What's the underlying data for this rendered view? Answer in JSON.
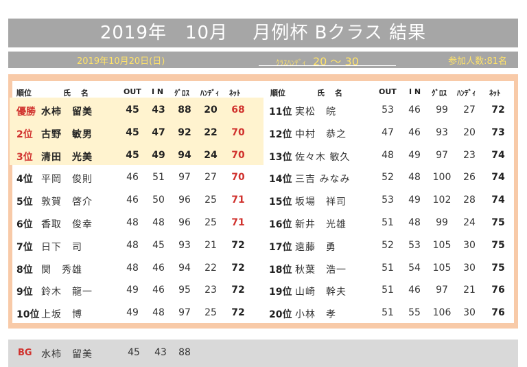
{
  "title": "2019年　10月　 月例杯 Bクラス 結果",
  "subtitle": {
    "date": "2019年10月20日(日)",
    "class_label": "ｸﾗｽﾊﾝﾃﾞｨ",
    "class_range": "20 ～ 30",
    "participants": "参加人数:81名"
  },
  "headers": {
    "rank": "順位",
    "name": "氏　 名",
    "out": "OUT",
    "in": "I N",
    "gross": "ｸﾞﾛｽ",
    "handicap": "ﾊﾝﾃﾞｨ",
    "net": "ﾈｯﾄ"
  },
  "left_rows": [
    {
      "rank": "優勝",
      "name": "水柿　留美",
      "out": "45",
      "in": "43",
      "gross": "88",
      "hdcp": "20",
      "net": "68",
      "top": true,
      "net_red": true
    },
    {
      "rank": "2位",
      "name": "古野　敏男",
      "out": "45",
      "in": "47",
      "gross": "92",
      "hdcp": "22",
      "net": "70",
      "top": true,
      "net_red": true
    },
    {
      "rank": "3位",
      "name": "清田　光美",
      "out": "45",
      "in": "49",
      "gross": "94",
      "hdcp": "24",
      "net": "70",
      "top": true,
      "net_red": true
    },
    {
      "rank": "4位",
      "name": "平岡　俊則",
      "out": "46",
      "in": "51",
      "gross": "97",
      "hdcp": "27",
      "net": "70",
      "top": false,
      "net_red": true
    },
    {
      "rank": "5位",
      "name": "敦賀　啓介",
      "out": "46",
      "in": "50",
      "gross": "96",
      "hdcp": "25",
      "net": "71",
      "top": false,
      "net_red": true
    },
    {
      "rank": "6位",
      "name": "香取　俊幸",
      "out": "48",
      "in": "48",
      "gross": "96",
      "hdcp": "25",
      "net": "71",
      "top": false,
      "net_red": true
    },
    {
      "rank": "7位",
      "name": "日下　司",
      "out": "48",
      "in": "45",
      "gross": "93",
      "hdcp": "21",
      "net": "72",
      "top": false,
      "net_red": false
    },
    {
      "rank": "8位",
      "name": "関　秀雄",
      "out": "48",
      "in": "46",
      "gross": "94",
      "hdcp": "22",
      "net": "72",
      "top": false,
      "net_red": false
    },
    {
      "rank": "9位",
      "name": "鈴木　龍一",
      "out": "49",
      "in": "46",
      "gross": "95",
      "hdcp": "23",
      "net": "72",
      "top": false,
      "net_red": false
    },
    {
      "rank": "10位",
      "name": "上坂　博",
      "out": "49",
      "in": "48",
      "gross": "97",
      "hdcp": "25",
      "net": "72",
      "top": false,
      "net_red": false
    }
  ],
  "right_rows": [
    {
      "rank": "11位",
      "name": "実松　皖",
      "out": "53",
      "in": "46",
      "gross": "99",
      "hdcp": "27",
      "net": "72"
    },
    {
      "rank": "12位",
      "name": "中村　恭之",
      "out": "47",
      "in": "46",
      "gross": "93",
      "hdcp": "20",
      "net": "73"
    },
    {
      "rank": "13位",
      "name": "佐々木 敏久",
      "out": "48",
      "in": "49",
      "gross": "97",
      "hdcp": "23",
      "net": "74"
    },
    {
      "rank": "14位",
      "name": "三吉 みなみ",
      "out": "52",
      "in": "48",
      "gross": "100",
      "hdcp": "26",
      "net": "74"
    },
    {
      "rank": "15位",
      "name": "坂場　祥司",
      "out": "53",
      "in": "49",
      "gross": "102",
      "hdcp": "28",
      "net": "74"
    },
    {
      "rank": "16位",
      "name": "新井　光雄",
      "out": "51",
      "in": "48",
      "gross": "99",
      "hdcp": "24",
      "net": "75"
    },
    {
      "rank": "17位",
      "name": "遠藤　勇",
      "out": "52",
      "in": "53",
      "gross": "105",
      "hdcp": "30",
      "net": "75"
    },
    {
      "rank": "18位",
      "name": "秋葉　浩一",
      "out": "51",
      "in": "54",
      "gross": "105",
      "hdcp": "30",
      "net": "75"
    },
    {
      "rank": "19位",
      "name": "山崎　幹夫",
      "out": "51",
      "in": "46",
      "gross": "97",
      "hdcp": "21",
      "net": "76"
    },
    {
      "rank": "20位",
      "name": "小林　孝",
      "out": "51",
      "in": "55",
      "gross": "106",
      "hdcp": "30",
      "net": "76"
    }
  ],
  "best_gross": {
    "label": "BG",
    "name": "水柿　留美",
    "out": "45",
    "in": "43",
    "gross": "88"
  },
  "colors": {
    "title_bg": "#a6a6a6",
    "accent_yellow": "#ffe36a",
    "panel": "#f8caa8",
    "highlight": "#fff3cf",
    "red": "#d0312d"
  }
}
